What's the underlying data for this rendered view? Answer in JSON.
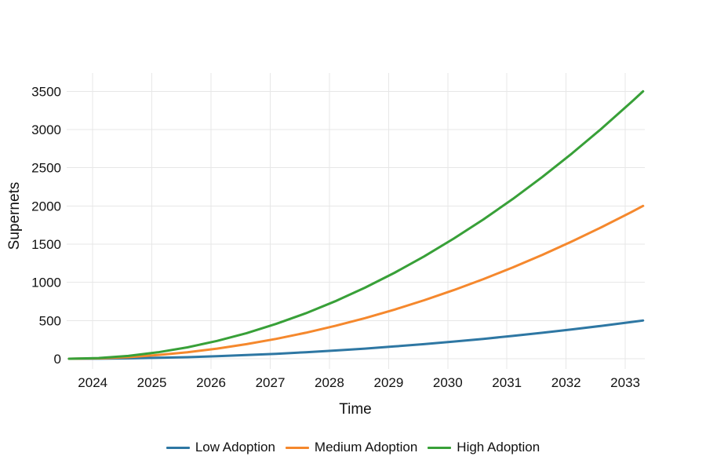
{
  "chart_data": {
    "type": "line",
    "title": "",
    "xlabel": "Time",
    "ylabel": "Supernets",
    "xlim": [
      2023.56,
      2033.33
    ],
    "ylim": [
      0,
      3740
    ],
    "x_ticks": [
      2024,
      2025,
      2026,
      2027,
      2028,
      2029,
      2030,
      2031,
      2032,
      2033
    ],
    "y_ticks": [
      0,
      500,
      1000,
      1500,
      2000,
      2500,
      3000,
      3500
    ],
    "grid": true,
    "legend_position": "bottom-center",
    "background": "#ffffff",
    "gridline_color": "#e7e7e7",
    "x": [
      2023.6,
      2024.1,
      2024.6,
      2025.1,
      2025.6,
      2026.1,
      2026.6,
      2027.1,
      2027.6,
      2028.1,
      2028.6,
      2029.1,
      2029.6,
      2030.1,
      2030.6,
      2031.1,
      2031.6,
      2032.1,
      2032.6,
      2033.1,
      2033.3
    ],
    "series": [
      {
        "name": "Low Adoption",
        "color": "#2e77a3",
        "values": [
          0,
          1,
          5,
          12,
          21,
          33,
          48,
          65,
          85,
          108,
          133,
          161,
          191,
          225,
          260,
          299,
          340,
          384,
          430,
          480,
          500
        ]
      },
      {
        "name": "Medium Adoption",
        "color": "#f5882d",
        "values": [
          0,
          5,
          21,
          48,
          85,
          133,
          191,
          260,
          340,
          430,
          531,
          643,
          765,
          898,
          1042,
          1196,
          1360,
          1536,
          1722,
          1918,
          2000
        ]
      },
      {
        "name": "High Adoption",
        "color": "#38a038",
        "values": [
          0,
          9,
          37,
          84,
          149,
          233,
          335,
          456,
          595,
          753,
          930,
          1125,
          1339,
          1572,
          1823,
          2092,
          2381,
          2688,
          3013,
          3357,
          3500
        ]
      }
    ]
  }
}
